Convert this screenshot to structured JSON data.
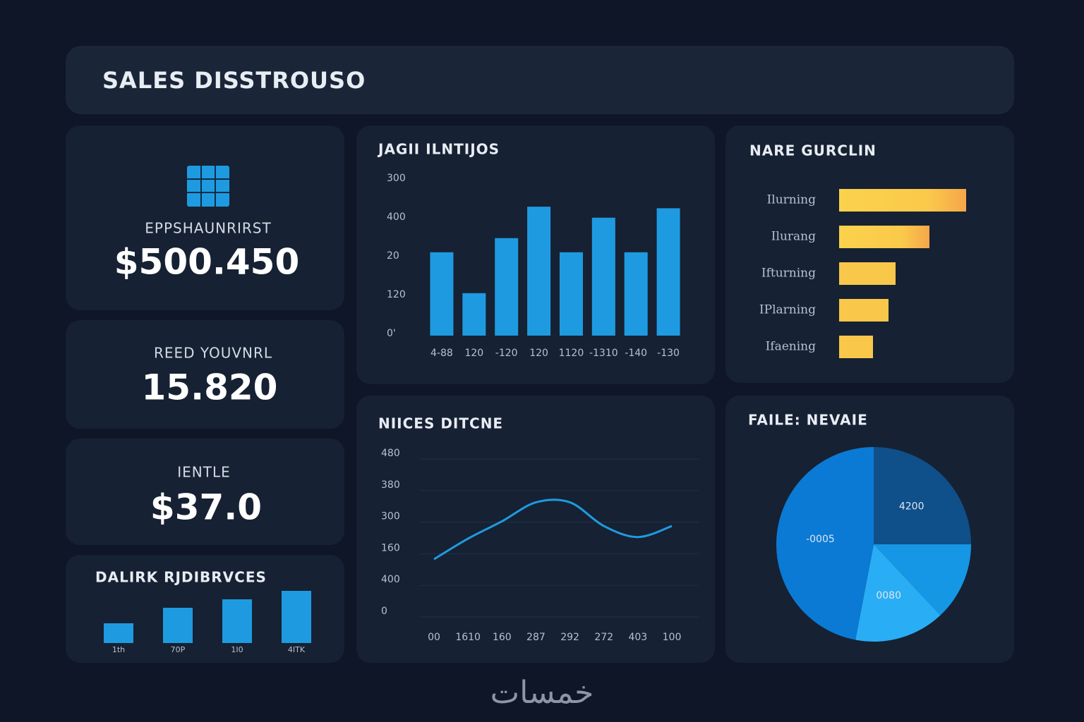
{
  "header": {
    "title": "SALES DISSTROUSO"
  },
  "kpis": [
    {
      "label": "EPPSHAUNRIRST",
      "value": "$500.450"
    },
    {
      "label": "REED YOUVNRL",
      "value": "15.820"
    },
    {
      "label": "IENTLE",
      "value": "$37.0"
    }
  ],
  "chart_data": [
    {
      "type": "bar",
      "title": "JAGII ILNTIJOS",
      "categories": [
        "4-88",
        "120",
        "-120",
        "120",
        "1120",
        "-1310",
        "-140",
        "-130"
      ],
      "values": [
        53,
        27,
        62,
        82,
        53,
        75,
        53,
        81
      ],
      "color": "#1e9be0",
      "ylim": [
        0,
        100
      ],
      "y_labels": [
        "300",
        "400",
        "20",
        "120",
        "0'"
      ]
    },
    {
      "type": "hbar",
      "title": "NARE GURCLIN",
      "categories": [
        "Ilurning",
        "Ilurang",
        "Ifturning",
        "IPlarning",
        "Ifaening"
      ],
      "values": [
        90,
        64,
        40,
        35,
        24
      ],
      "color": "#f9c84a",
      "xlim": [
        0,
        100
      ]
    },
    {
      "type": "line",
      "title": "NIICES DITCNE",
      "categories": [
        "00",
        "1610",
        "160",
        "287",
        "292",
        "272",
        "403",
        "100"
      ],
      "values": [
        33,
        46,
        57,
        69,
        69,
        54,
        47,
        54
      ],
      "color": "#1e9be0",
      "ylim": [
        0,
        100
      ],
      "y_labels": [
        "480",
        "380",
        "300",
        "160",
        "400",
        "0"
      ],
      "grid": true
    },
    {
      "type": "pie",
      "title": "FAILE: NEVAIE",
      "values": [
        25,
        13,
        15,
        47
      ],
      "labels": [
        "4200",
        null,
        "0080",
        "-0005"
      ],
      "colors": [
        "#0f4f8a",
        "#1597e5",
        "#29aef5",
        "#0b7ad4"
      ]
    },
    {
      "type": "bar",
      "title": "DALIRK RJDIBRVCES",
      "categories": [
        "1th",
        "70P",
        "1I0",
        "4ITK"
      ],
      "values": [
        28,
        50,
        62,
        74
      ],
      "color": "#1e9be0",
      "ylim": [
        0,
        80
      ]
    }
  ],
  "watermark": "خمسات"
}
